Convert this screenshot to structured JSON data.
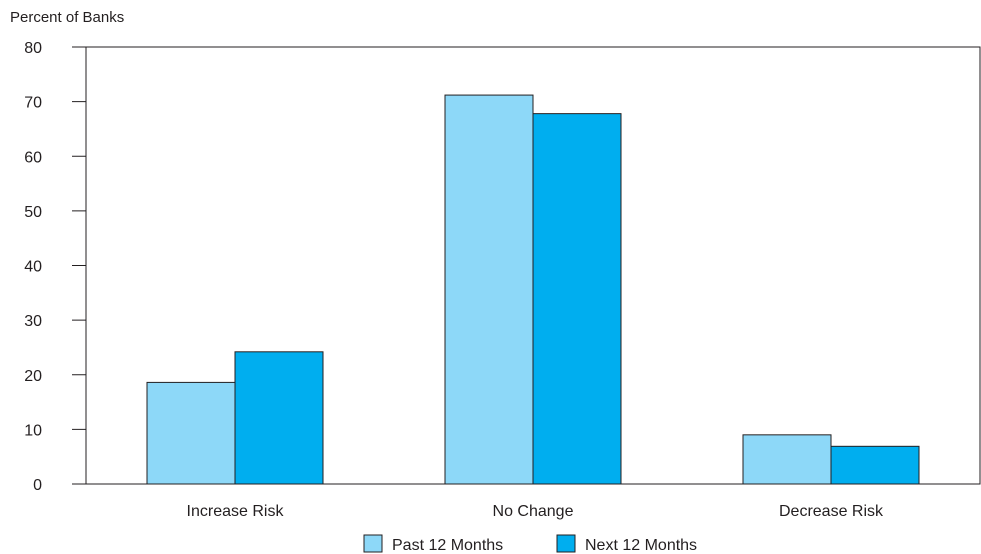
{
  "chart_data": {
    "type": "bar",
    "title": "",
    "ylabel": "Percent of Banks",
    "xlabel": "",
    "ylim": [
      0,
      80
    ],
    "yticks": [
      0,
      10,
      20,
      30,
      40,
      50,
      60,
      70,
      80
    ],
    "categories": [
      "Increase Risk",
      "No Change",
      "Decrease Risk"
    ],
    "series": [
      {
        "name": "Past 12 Months",
        "color": "#8dd8f8",
        "values": [
          18.6,
          71.2,
          9.0
        ]
      },
      {
        "name": "Next 12 Months",
        "color": "#00aeef",
        "values": [
          24.2,
          67.8,
          6.9
        ]
      }
    ],
    "grid": false,
    "legend_position": "bottom-center"
  }
}
